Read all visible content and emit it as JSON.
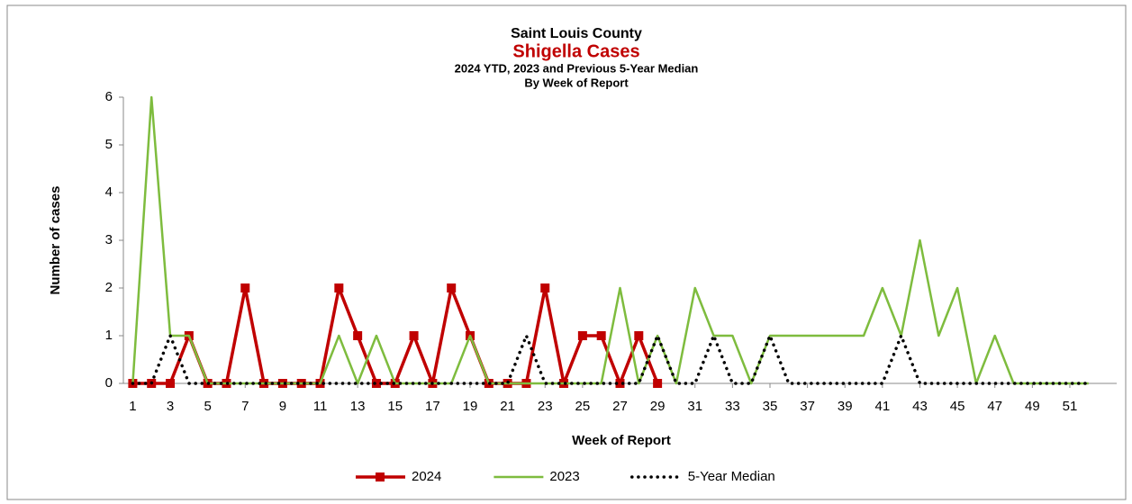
{
  "chart_data": {
    "type": "line",
    "title": "Saint Louis County",
    "subtitle": "Shigella Cases",
    "subtitle2": "2024 YTD, 2023 and Previous 5-Year Median",
    "subtitle3": "By Week of Report",
    "x_label": "Week of Report",
    "y_label": "Number of cases",
    "x": [
      1,
      2,
      3,
      4,
      5,
      6,
      7,
      8,
      9,
      10,
      11,
      12,
      13,
      14,
      15,
      16,
      17,
      18,
      19,
      20,
      21,
      22,
      23,
      24,
      25,
      26,
      27,
      28,
      29,
      30,
      31,
      32,
      33,
      34,
      35,
      36,
      37,
      38,
      39,
      40,
      41,
      42,
      43,
      44,
      45,
      46,
      47,
      48,
      49,
      50,
      51,
      52
    ],
    "series": [
      {
        "name": "2024",
        "color": "#c00000",
        "marker": "square",
        "dash": "solid",
        "values": [
          0,
          0,
          0,
          1,
          0,
          0,
          2,
          0,
          0,
          0,
          0,
          2,
          1,
          0,
          0,
          1,
          0,
          2,
          1,
          0,
          0,
          0,
          2,
          0,
          1,
          1,
          0,
          1,
          0,
          null,
          null,
          null,
          null,
          null,
          null,
          null,
          null,
          null,
          null,
          null,
          null,
          null,
          null,
          null,
          null,
          null,
          null,
          null,
          null,
          null,
          null,
          null
        ]
      },
      {
        "name": "2023",
        "color": "#7ebc3e",
        "marker": "none",
        "dash": "solid",
        "values": [
          0,
          6,
          1,
          1,
          0,
          0,
          0,
          0,
          0,
          0,
          0,
          1,
          0,
          1,
          0,
          0,
          0,
          0,
          1,
          0,
          0,
          0,
          0,
          0,
          0,
          0,
          2,
          0,
          1,
          0,
          2,
          1,
          1,
          0,
          1,
          1,
          1,
          1,
          1,
          1,
          2,
          1,
          3,
          1,
          2,
          0,
          1,
          0,
          0,
          0,
          0,
          0
        ]
      },
      {
        "name": "5-Year Median",
        "color": "#000000",
        "marker": "none",
        "dash": "dotted",
        "values": [
          0,
          0,
          1,
          0,
          0,
          0,
          0,
          0,
          0,
          0,
          0,
          0,
          0,
          0,
          0,
          0,
          0,
          0,
          0,
          0,
          0,
          1,
          0,
          0,
          0,
          0,
          0,
          0,
          1,
          0,
          0,
          1,
          0,
          0,
          1,
          0,
          0,
          0,
          0,
          0,
          0,
          1,
          0,
          0,
          0,
          0,
          0,
          0,
          0,
          0,
          0,
          0
        ]
      }
    ],
    "xlim": [
      0.5,
      53.5
    ],
    "xticks": [
      1,
      3,
      5,
      7,
      9,
      11,
      13,
      15,
      17,
      19,
      21,
      23,
      25,
      27,
      29,
      31,
      33,
      35,
      37,
      39,
      41,
      43,
      45,
      47,
      49,
      51
    ],
    "ylim": [
      0,
      6
    ],
    "yticks": [
      0,
      1,
      2,
      3,
      4,
      5,
      6
    ],
    "grid": false,
    "legend": "bottom"
  }
}
